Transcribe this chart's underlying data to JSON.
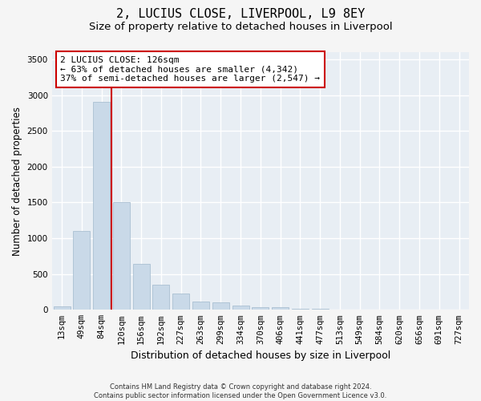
{
  "title1": "2, LUCIUS CLOSE, LIVERPOOL, L9 8EY",
  "title2": "Size of property relative to detached houses in Liverpool",
  "xlabel": "Distribution of detached houses by size in Liverpool",
  "ylabel": "Number of detached properties",
  "footnote1": "Contains HM Land Registry data © Crown copyright and database right 2024.",
  "footnote2": "Contains public sector information licensed under the Open Government Licence v3.0.",
  "bar_labels": [
    "13sqm",
    "49sqm",
    "84sqm",
    "120sqm",
    "156sqm",
    "192sqm",
    "227sqm",
    "263sqm",
    "299sqm",
    "334sqm",
    "370sqm",
    "406sqm",
    "441sqm",
    "477sqm",
    "513sqm",
    "549sqm",
    "584sqm",
    "620sqm",
    "656sqm",
    "691sqm",
    "727sqm"
  ],
  "bar_values": [
    50,
    1100,
    2900,
    1500,
    640,
    350,
    230,
    110,
    100,
    60,
    35,
    35,
    20,
    15,
    5,
    0,
    0,
    0,
    0,
    0,
    0
  ],
  "bar_color": "#c9d9e8",
  "bar_edgecolor": "#a0b8cc",
  "red_line_x": 2.5,
  "annotation_title": "2 LUCIUS CLOSE: 126sqm",
  "annotation_line1": "← 63% of detached houses are smaller (4,342)",
  "annotation_line2": "37% of semi-detached houses are larger (2,547) →",
  "line_color": "#cc0000",
  "annotation_box_edgecolor": "#cc0000",
  "ylim": [
    0,
    3600
  ],
  "yticks": [
    0,
    500,
    1000,
    1500,
    2000,
    2500,
    3000,
    3500
  ],
  "axes_bg_color": "#e8eef4",
  "grid_color": "#ffffff",
  "fig_bg_color": "#f5f5f5",
  "title1_fontsize": 11,
  "title2_fontsize": 9.5,
  "ylabel_fontsize": 8.5,
  "xlabel_fontsize": 9,
  "annotation_fontsize": 8,
  "tick_fontsize": 7.5,
  "footnote_fontsize": 6
}
